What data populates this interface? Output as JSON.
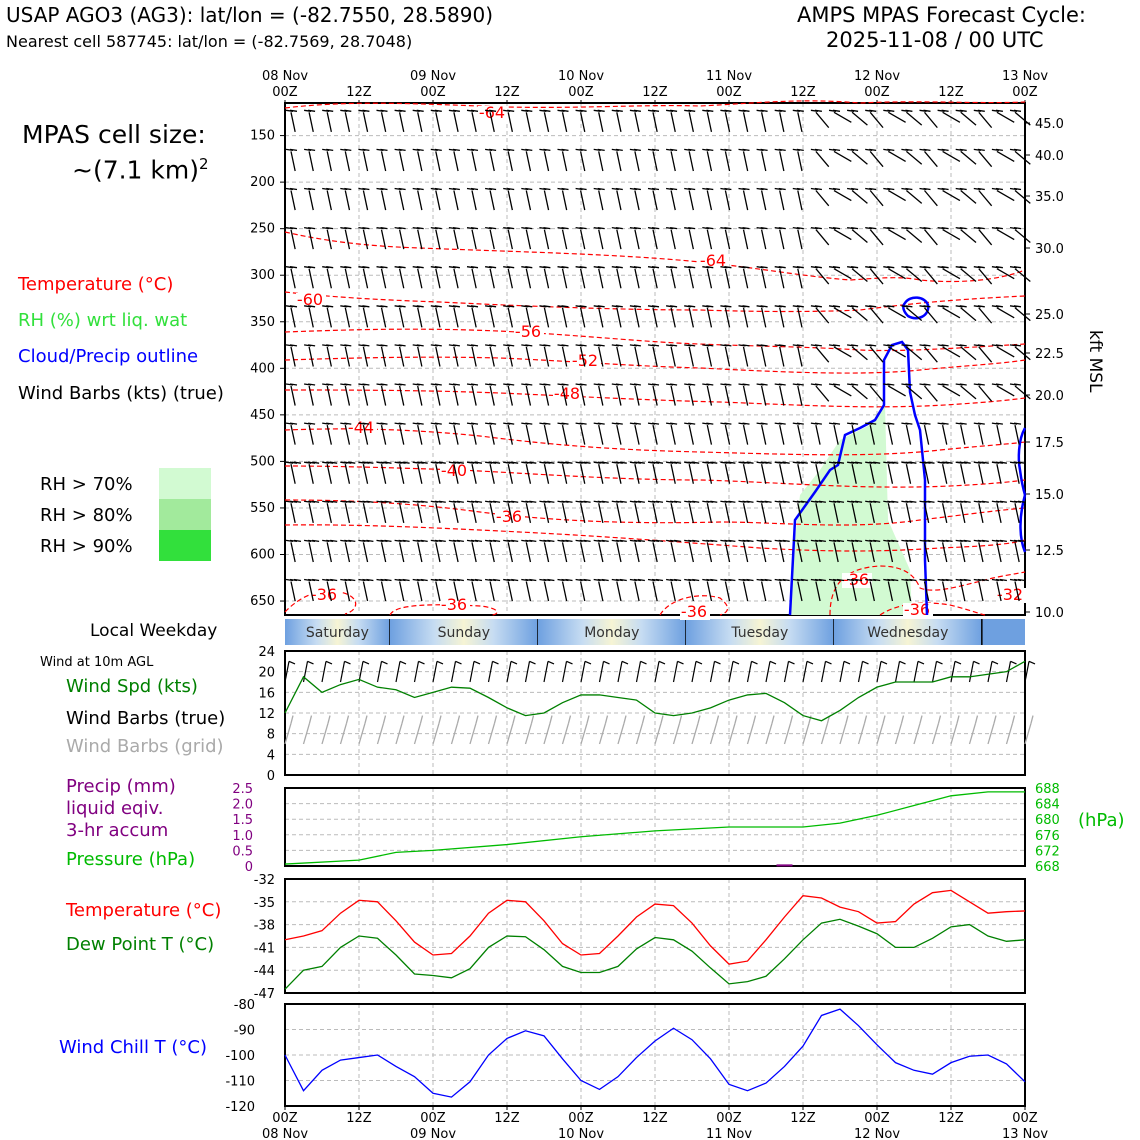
{
  "header": {
    "station_line": "USAP AGO3 (AG3): lat/lon = (-82.7550, 28.5890)",
    "cell_line": "Nearest cell 587745: lat/lon = (-82.7569, 28.7048)",
    "cycle_line1": "AMPS MPAS Forecast Cycle:",
    "cycle_line2": "2025-11-08 / 00 UTC"
  },
  "left_panel": {
    "cell_size_label": "MPAS cell size:",
    "cell_size_value": "~(7.1 km)",
    "cell_size_exp": "2",
    "legend_temperature": "Temperature (°C)",
    "legend_rh": "RH (%) wrt liq. wat",
    "legend_cloud": "Cloud/Precip outline",
    "legend_wind": "Wind Barbs (kts) (true)",
    "rh_levels": [
      {
        "label": "RH > 70%",
        "color": "#d2fad2"
      },
      {
        "label": "RH > 80%",
        "color": "#a2ea9c"
      },
      {
        "label": "RH > 90%",
        "color": "#32e03c"
      }
    ],
    "local_weekday_label": "Local Weekday",
    "wind10m_label": "Wind at 10m AGL",
    "wind_spd_label": "Wind Spd (kts)",
    "wind_barbs_true_label": "Wind Barbs (true)",
    "wind_barbs_grid_label": "Wind Barbs (grid)",
    "precip_label1": "Precip (mm)",
    "precip_label2": "liquid eqiv.",
    "precip_label3": "3-hr accum",
    "pressure_label": "Pressure (hPa)",
    "temp_label": "Temperature (°C)",
    "dewpoint_label": "Dew Point T (°C)",
    "windchill_label": "Wind Chill T (°C)"
  },
  "colors": {
    "temperature": "#ff0000",
    "rh": "#32e03c",
    "cloud": "#0000ff",
    "wind": "#000000",
    "wind_speed": "#008000",
    "wind_grid": "#aaaaaa",
    "precip": "#800080",
    "pressure": "#00bb00",
    "dewpoint": "#008000",
    "windchill": "#0000ff"
  },
  "time_axis": {
    "top_labels": [
      {
        "time": "00Z",
        "date": "08 Nov"
      },
      {
        "time": "12Z",
        "date": ""
      },
      {
        "time": "00Z",
        "date": "09 Nov"
      },
      {
        "time": "12Z",
        "date": ""
      },
      {
        "time": "00Z",
        "date": "10 Nov"
      },
      {
        "time": "12Z",
        "date": ""
      },
      {
        "time": "00Z",
        "date": "11 Nov"
      },
      {
        "time": "12Z",
        "date": ""
      },
      {
        "time": "00Z",
        "date": "12 Nov"
      },
      {
        "time": "12Z",
        "date": ""
      },
      {
        "time": "00Z",
        "date": "13 Nov"
      }
    ],
    "weekdays": [
      "Saturday",
      "Sunday",
      "Monday",
      "Tuesday",
      "Wednesday"
    ]
  },
  "chart_data": [
    {
      "type": "heatmap",
      "name": "pressure-height cross section",
      "x": [
        "08 Nov 00Z",
        "13 Nov 00Z"
      ],
      "y_left_label": "hPa",
      "y_left_ticks": [
        150,
        200,
        250,
        300,
        350,
        400,
        450,
        500,
        550,
        600,
        650
      ],
      "y_right_label": "kft MSL",
      "y_right_ticks": [
        "45.0",
        "40.0",
        "35.0",
        "30.0",
        "25.0",
        "22.5",
        "20.0",
        "17.5",
        "15.0",
        "12.5",
        "10.0"
      ],
      "temperature_contour_labels": [
        "-64",
        "-64",
        "-60",
        "-56",
        "-52",
        "-48",
        "-44",
        "-40",
        "-36",
        "-36",
        "-36",
        "-36",
        "-36",
        "-36",
        "-32"
      ]
    },
    {
      "type": "line",
      "name": "Wind Spd (kts)",
      "x_hours": [
        0,
        3,
        6,
        9,
        12,
        15,
        18,
        21,
        24,
        27,
        30,
        33,
        36,
        39,
        42,
        45,
        48,
        51,
        54,
        57,
        60,
        63,
        66,
        69,
        72,
        75,
        78,
        81,
        84,
        87,
        90,
        93,
        96,
        99,
        102,
        105,
        108,
        111,
        114,
        117,
        120
      ],
      "values": [
        12,
        19,
        16,
        17.5,
        18.5,
        17,
        16.5,
        15,
        16,
        17,
        16.8,
        15,
        13,
        11.5,
        12,
        14,
        15.5,
        15.5,
        15,
        14.5,
        12,
        11.5,
        12,
        13,
        14.5,
        15.5,
        15.8,
        14,
        11.5,
        10.5,
        12.5,
        15,
        17,
        18,
        18,
        18,
        19,
        19,
        19.5,
        20,
        22
      ],
      "ylim": [
        0,
        24
      ],
      "yticks": [
        0,
        4,
        8,
        12,
        16,
        20,
        24
      ]
    },
    {
      "type": "line",
      "name": "Pressure (hPa)",
      "x_hours": [
        0,
        12,
        18,
        24,
        36,
        48,
        60,
        72,
        84,
        90,
        96,
        102,
        108,
        114,
        120
      ],
      "values": [
        668.5,
        669.5,
        671.5,
        672,
        673.5,
        675.5,
        677,
        678,
        678,
        679,
        681,
        683.5,
        686,
        687,
        687
      ],
      "ylim": [
        668,
        688
      ],
      "yticks_right": [
        668,
        672,
        676,
        680,
        684,
        688
      ],
      "precip_mm": [
        0,
        0,
        0,
        0,
        0,
        0,
        0,
        0,
        0,
        0,
        0,
        0,
        0,
        0,
        0,
        0,
        0,
        0,
        0,
        0,
        0,
        0,
        0,
        0,
        0,
        0,
        0,
        0.02,
        0,
        0,
        0,
        0,
        0,
        0,
        0,
        0,
        0,
        0,
        0,
        0
      ],
      "precip_ylim": [
        0,
        2.5
      ],
      "precip_yticks": [
        0,
        0.5,
        1.0,
        1.5,
        2.0,
        2.5
      ]
    },
    {
      "type": "line",
      "name": "Temperature and Dew Point (°C)",
      "x_hours": [
        0,
        3,
        6,
        9,
        12,
        15,
        18,
        21,
        24,
        27,
        30,
        33,
        36,
        39,
        42,
        45,
        48,
        51,
        54,
        57,
        60,
        63,
        66,
        69,
        72,
        75,
        78,
        81,
        84,
        87,
        90,
        93,
        96,
        99,
        102,
        105,
        108,
        111,
        114,
        117,
        120
      ],
      "series": [
        {
          "name": "Temperature (°C)",
          "values": [
            -40,
            -39.5,
            -38.8,
            -36.5,
            -34.8,
            -35,
            -37.5,
            -40.3,
            -42,
            -41.8,
            -39.5,
            -36.5,
            -34.8,
            -35,
            -37.5,
            -40.5,
            -42,
            -41.8,
            -39.5,
            -37,
            -35.3,
            -35.5,
            -37.8,
            -40.8,
            -43.2,
            -42.8,
            -40,
            -37,
            -34.2,
            -34.5,
            -35.7,
            -36.3,
            -37.8,
            -37.6,
            -35.3,
            -33.8,
            -33.5,
            -35,
            -36.5,
            -36.3,
            -36.2
          ]
        },
        {
          "name": "Dew Point T (°C)",
          "values": [
            -46.5,
            -44,
            -43.5,
            -41,
            -39.5,
            -39.8,
            -42,
            -44.5,
            -44.7,
            -45,
            -43.8,
            -41,
            -39.5,
            -39.6,
            -41.3,
            -43.5,
            -44.3,
            -44.3,
            -43.5,
            -41.2,
            -39.7,
            -40,
            -41.5,
            -43.7,
            -45.8,
            -45.5,
            -44.8,
            -42.5,
            -40,
            -37.8,
            -37.3,
            -38.2,
            -39.2,
            -41,
            -41,
            -39.8,
            -38.3,
            -38,
            -39.5,
            -40.2,
            -40
          ]
        }
      ],
      "ylim": [
        -47,
        -32
      ],
      "yticks": [
        -47,
        -44,
        -41,
        -38,
        -35,
        -32
      ]
    },
    {
      "type": "line",
      "name": "Wind Chill T (°C)",
      "x_hours": [
        0,
        3,
        6,
        9,
        12,
        15,
        18,
        21,
        24,
        27,
        30,
        33,
        36,
        39,
        42,
        45,
        48,
        51,
        54,
        57,
        60,
        63,
        66,
        69,
        72,
        75,
        78,
        81,
        84,
        87,
        90,
        93,
        96,
        99,
        102,
        105,
        108,
        111,
        114,
        117,
        120
      ],
      "values": [
        -100,
        -114,
        -106,
        -102,
        -101,
        -100,
        -104.5,
        -108.5,
        -115,
        -116.5,
        -110.5,
        -100,
        -93.5,
        -90.5,
        -92.5,
        -101.5,
        -110,
        -113.5,
        -108.5,
        -101,
        -94.5,
        -89.5,
        -94,
        -101.5,
        -111.5,
        -114,
        -111,
        -104.5,
        -96.5,
        -84.5,
        -82,
        -88.5,
        -96,
        -103,
        -106,
        -107.5,
        -103,
        -100.5,
        -100,
        -103.5,
        -110.5
      ],
      "ylim": [
        -120,
        -80
      ],
      "yticks": [
        -120,
        -110,
        -100,
        -90,
        -80
      ]
    }
  ]
}
